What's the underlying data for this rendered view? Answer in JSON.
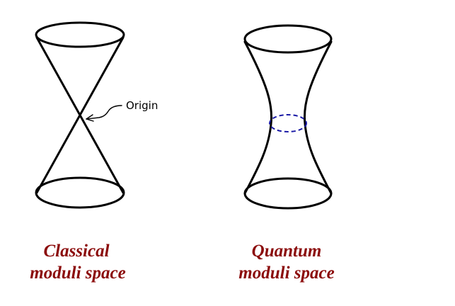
{
  "classical": {
    "origin_label": "Origin",
    "caption_line1": "Classical",
    "caption_line2": "moduli space"
  },
  "quantum": {
    "caption_line1": "Quantum",
    "caption_line2": "moduli space"
  },
  "colors": {
    "outline": "#000000",
    "caption": "#8b0a0a",
    "throat_ring": "#1a1aa6"
  }
}
